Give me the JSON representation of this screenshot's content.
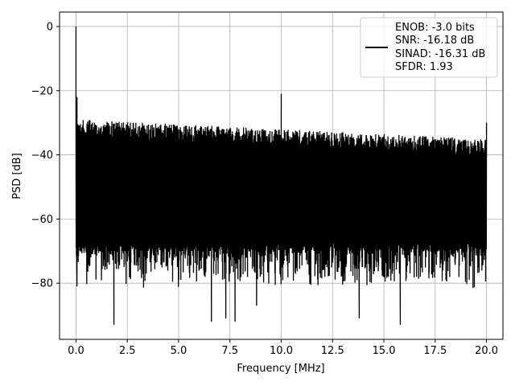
{
  "chart_data": {
    "type": "line",
    "xlabel": "Frequency [MHz]",
    "ylabel": "PSD [dB]",
    "xlim": [
      -0.8,
      20.8
    ],
    "ylim": [
      -97.5,
      4.5
    ],
    "xticks": [
      0.0,
      2.5,
      5.0,
      7.5,
      10.0,
      12.5,
      15.0,
      17.5,
      20.0
    ],
    "xtick_labels": [
      "0.0",
      "2.5",
      "5.0",
      "7.5",
      "10.0",
      "12.5",
      "15.0",
      "17.5",
      "20.0"
    ],
    "yticks": [
      0,
      -20,
      -40,
      -60,
      -80
    ],
    "ytick_labels": [
      "0",
      "−20",
      "−40",
      "−60",
      "−80"
    ],
    "grid": true,
    "legend_position": "top-right",
    "legend": [
      "ENOB: -3.0 bits",
      "SNR: -16.18 dB",
      "SINAD: -16.31 dB",
      "SFDR: 1.93"
    ],
    "series": [
      {
        "color": "#000000",
        "x_range": [
          0,
          20
        ],
        "noise_top_start": -29,
        "noise_top_end": -35,
        "noise_bottom": -67,
        "spikes": [
          {
            "x": 0.0,
            "y": 0
          },
          {
            "x": 0.05,
            "y": -22
          },
          {
            "x": 10.0,
            "y": -21
          },
          {
            "x": 20.0,
            "y": -30
          }
        ],
        "deep_dips": [
          {
            "x": 0.05,
            "y": -81
          },
          {
            "x": 1.85,
            "y": -93
          },
          {
            "x": 6.6,
            "y": -92
          },
          {
            "x": 7.3,
            "y": -91
          },
          {
            "x": 7.75,
            "y": -92
          },
          {
            "x": 8.8,
            "y": -87
          },
          {
            "x": 13.8,
            "y": -91
          },
          {
            "x": 15.8,
            "y": -93
          }
        ]
      }
    ]
  }
}
